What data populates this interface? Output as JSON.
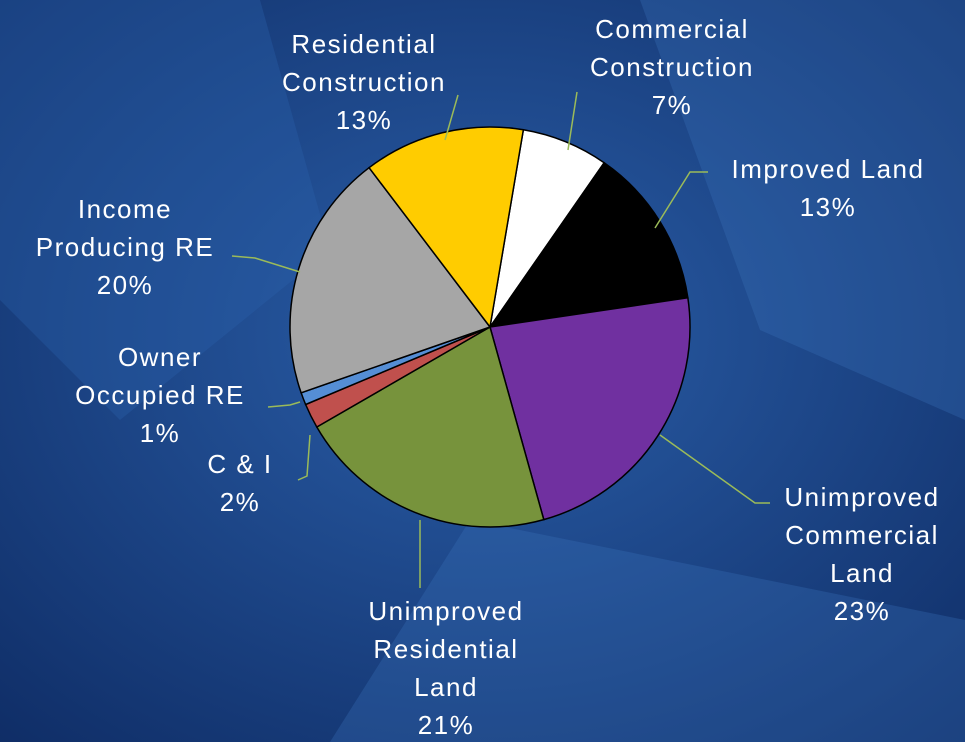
{
  "chart_data": {
    "type": "pie",
    "categories": [
      "Commercial\nConstruction",
      "Improved Land",
      "Unimproved\nCommercial\nLand",
      "Unimproved\nResidential\nLand",
      "C & I",
      "Owner\nOccupied RE",
      "Income\nProducing RE",
      "Residential\nConstruction"
    ],
    "values": [
      7,
      13,
      23,
      21,
      2,
      1,
      20,
      13
    ],
    "value_labels": [
      "7%",
      "13%",
      "23%",
      "21%",
      "2%",
      "1%",
      "20%",
      "13%"
    ],
    "colors": [
      "#ffffff",
      "#000000",
      "#7030a0",
      "#77933c",
      "#c0504d",
      "#558ed5",
      "#a6a6a6",
      "#ffcc00"
    ]
  }
}
